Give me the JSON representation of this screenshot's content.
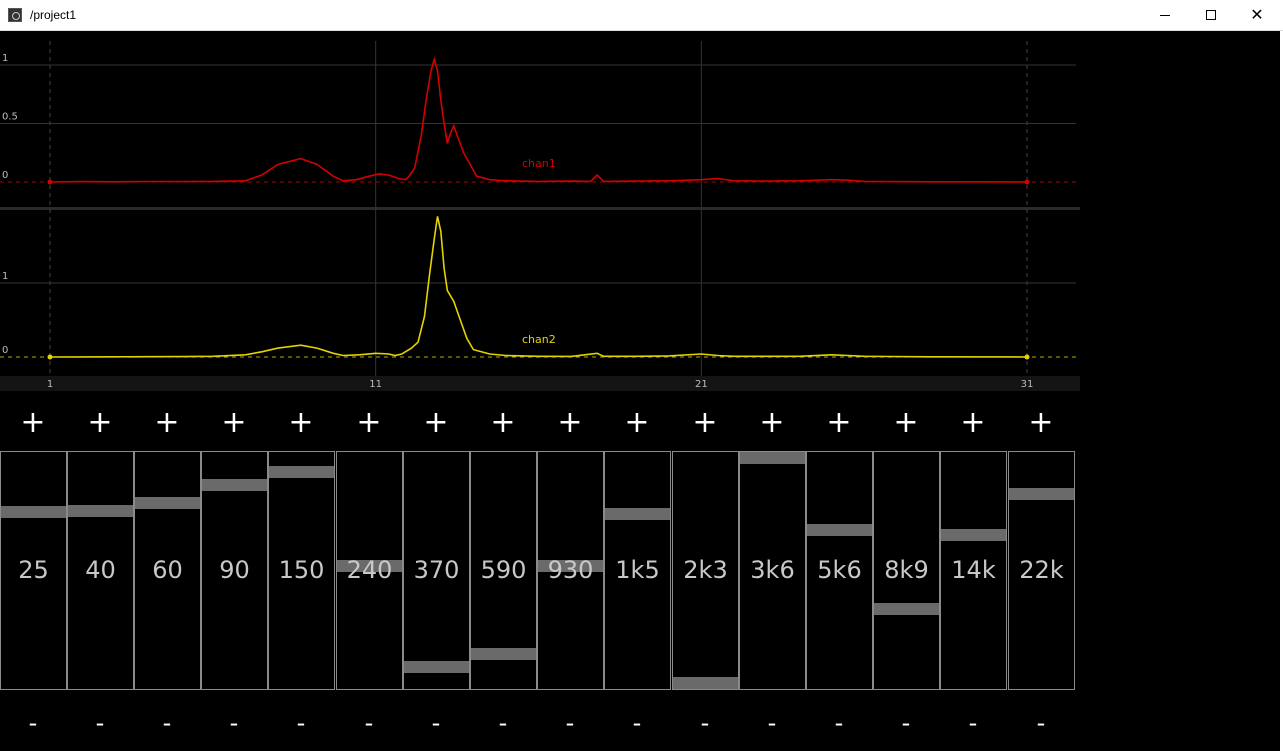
{
  "window": {
    "title": "/project1",
    "minimize_icon": "minimize-icon",
    "maximize_icon": "maximize-icon",
    "close_icon": "close-icon",
    "close_glyph": "✕"
  },
  "graph": {
    "x_ticks": [
      "1",
      "11",
      "21",
      "31"
    ],
    "x_tick_values": [
      1,
      11,
      21,
      31
    ],
    "x_range": [
      1,
      31
    ],
    "chan1": {
      "name": "chan1",
      "color": "#d20000",
      "y_ticks": [
        "1",
        "0.5",
        "0"
      ],
      "y_tick_values": [
        1,
        0.5,
        0
      ],
      "y_range": [
        0,
        1
      ],
      "points": [
        [
          1,
          0
        ],
        [
          2,
          0.003
        ],
        [
          3,
          0.002
        ],
        [
          4,
          0.004
        ],
        [
          5,
          0.003
        ],
        [
          6,
          0.005
        ],
        [
          7,
          0.01
        ],
        [
          7.5,
          0.06
        ],
        [
          8,
          0.15
        ],
        [
          8.7,
          0.2
        ],
        [
          9.2,
          0.15
        ],
        [
          9.7,
          0.05
        ],
        [
          10,
          0.01
        ],
        [
          10.4,
          0.02
        ],
        [
          10.8,
          0.05
        ],
        [
          11.1,
          0.07
        ],
        [
          11.4,
          0.06
        ],
        [
          11.7,
          0.03
        ],
        [
          11.9,
          0.02
        ],
        [
          12,
          0.04
        ],
        [
          12.2,
          0.12
        ],
        [
          12.4,
          0.4
        ],
        [
          12.55,
          0.7
        ],
        [
          12.7,
          0.95
        ],
        [
          12.8,
          1.05
        ],
        [
          12.9,
          0.95
        ],
        [
          13,
          0.7
        ],
        [
          13.1,
          0.5
        ],
        [
          13.2,
          0.33
        ],
        [
          13.3,
          0.42
        ],
        [
          13.4,
          0.48
        ],
        [
          13.5,
          0.4
        ],
        [
          13.7,
          0.25
        ],
        [
          13.9,
          0.15
        ],
        [
          14.1,
          0.05
        ],
        [
          14.5,
          0.02
        ],
        [
          15,
          0.01
        ],
        [
          16,
          0.005
        ],
        [
          17,
          0.008
        ],
        [
          17.6,
          0.005
        ],
        [
          17.8,
          0.06
        ],
        [
          18,
          0.005
        ],
        [
          19,
          0.008
        ],
        [
          20,
          0.01
        ],
        [
          21,
          0.02
        ],
        [
          21.5,
          0.03
        ],
        [
          22,
          0.01
        ],
        [
          23,
          0.008
        ],
        [
          24,
          0.01
        ],
        [
          25,
          0.02
        ],
        [
          25.5,
          0.015
        ],
        [
          26,
          0.005
        ],
        [
          28,
          0.002
        ],
        [
          31,
          0
        ]
      ]
    },
    "chan2": {
      "name": "chan2",
      "color": "#e3d400",
      "y_ticks": [
        "1",
        "0"
      ],
      "y_tick_values": [
        1,
        0
      ],
      "y_range": [
        0,
        1.9
      ],
      "points": [
        [
          1,
          0
        ],
        [
          2,
          0.002
        ],
        [
          3,
          0.003
        ],
        [
          4,
          0.004
        ],
        [
          5,
          0.005
        ],
        [
          6,
          0.01
        ],
        [
          7,
          0.03
        ],
        [
          7.5,
          0.07
        ],
        [
          8,
          0.12
        ],
        [
          8.7,
          0.16
        ],
        [
          9.2,
          0.12
        ],
        [
          9.7,
          0.05
        ],
        [
          10,
          0.02
        ],
        [
          10.5,
          0.03
        ],
        [
          11,
          0.05
        ],
        [
          11.4,
          0.04
        ],
        [
          11.6,
          0.02
        ],
        [
          11.8,
          0.04
        ],
        [
          12.1,
          0.12
        ],
        [
          12.3,
          0.2
        ],
        [
          12.5,
          0.55
        ],
        [
          12.65,
          1.1
        ],
        [
          12.8,
          1.6
        ],
        [
          12.9,
          1.9
        ],
        [
          13,
          1.7
        ],
        [
          13.1,
          1.2
        ],
        [
          13.2,
          0.9
        ],
        [
          13.4,
          0.75
        ],
        [
          13.6,
          0.5
        ],
        [
          13.8,
          0.25
        ],
        [
          14,
          0.1
        ],
        [
          14.5,
          0.04
        ],
        [
          15,
          0.02
        ],
        [
          16,
          0.01
        ],
        [
          17,
          0.008
        ],
        [
          17.8,
          0.05
        ],
        [
          18,
          0.01
        ],
        [
          19,
          0.01
        ],
        [
          20,
          0.015
        ],
        [
          21,
          0.04
        ],
        [
          21.5,
          0.02
        ],
        [
          22,
          0.01
        ],
        [
          24,
          0.01
        ],
        [
          25,
          0.03
        ],
        [
          25.5,
          0.02
        ],
        [
          26,
          0.01
        ],
        [
          28,
          0.003
        ],
        [
          31,
          0
        ]
      ]
    }
  },
  "eq": {
    "plus_label": "+",
    "minus_label": "-",
    "bands": [
      {
        "label": "25",
        "level": 0.76
      },
      {
        "label": "40",
        "level": 0.765
      },
      {
        "label": "60",
        "level": 0.8
      },
      {
        "label": "90",
        "level": 0.88
      },
      {
        "label": "150",
        "level": 0.94
      },
      {
        "label": "240",
        "level": 0.52
      },
      {
        "label": "370",
        "level": 0.07
      },
      {
        "label": "590",
        "level": 0.13
      },
      {
        "label": "930",
        "level": 0.52
      },
      {
        "label": "1k5",
        "level": 0.75
      },
      {
        "label": "2k3",
        "level": 0.0
      },
      {
        "label": "3k6",
        "level": 1.0
      },
      {
        "label": "5k6",
        "level": 0.68
      },
      {
        "label": "8k9",
        "level": 0.33
      },
      {
        "label": "14k",
        "level": 0.66
      },
      {
        "label": "22k",
        "level": 0.84
      }
    ]
  }
}
